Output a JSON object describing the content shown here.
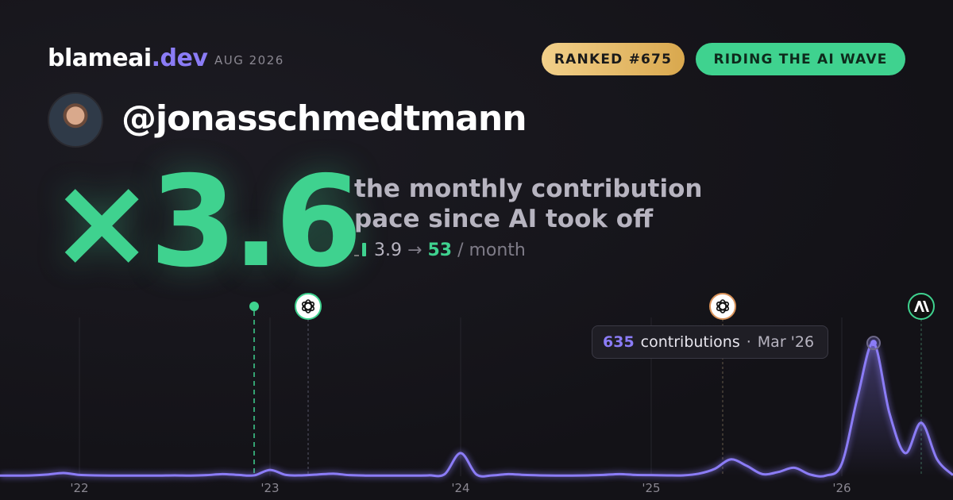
{
  "brand": {
    "name": "blameai",
    "tld": ".dev"
  },
  "period": "AUG 2026",
  "badges": [
    "RANKED #675",
    "RIDING THE AI WAVE"
  ],
  "handle": "@jonasschmedtmann",
  "headline": {
    "multiplier": "×3.6",
    "caption_lines": [
      "the monthly contribution",
      "pace since AI took off"
    ],
    "before": 3.9,
    "arrow": "→",
    "after": 53,
    "unit": "/ month"
  },
  "tooltip": {
    "label": "contributions",
    "separator": "·",
    "date": "Mar '26"
  },
  "chart_data": {
    "type": "line",
    "categories": [
      null,
      null,
      null,
      null,
      null,
      "'22",
      null,
      null,
      null,
      null,
      null,
      null,
      null,
      null,
      null,
      null,
      null,
      "'23",
      null,
      null,
      null,
      null,
      null,
      null,
      null,
      null,
      null,
      null,
      null,
      "'24",
      null,
      null,
      null,
      null,
      null,
      null,
      null,
      null,
      null,
      null,
      null,
      "'25",
      null,
      null,
      null,
      null,
      null,
      null,
      null,
      null,
      null,
      null,
      null,
      "'26",
      null,
      null,
      null,
      null,
      null,
      null,
      null
    ],
    "series": [
      {
        "name": "contributions",
        "color": "#8b7cf6",
        "values": [
          3,
          3,
          4,
          8,
          15,
          6,
          4,
          3,
          3,
          3,
          3,
          4,
          3,
          5,
          10,
          6,
          4,
          30,
          6,
          4,
          8,
          12,
          5,
          3,
          3,
          3,
          3,
          4,
          10,
          110,
          8,
          4,
          10,
          6,
          4,
          3,
          3,
          4,
          6,
          10,
          6,
          5,
          4,
          4,
          12,
          35,
          80,
          50,
          10,
          20,
          40,
          8,
          3,
          60,
          380,
          635,
          300,
          110,
          255,
          80,
          5
        ]
      }
    ],
    "ylim": [
      0,
      700
    ],
    "grid": true
  }
}
